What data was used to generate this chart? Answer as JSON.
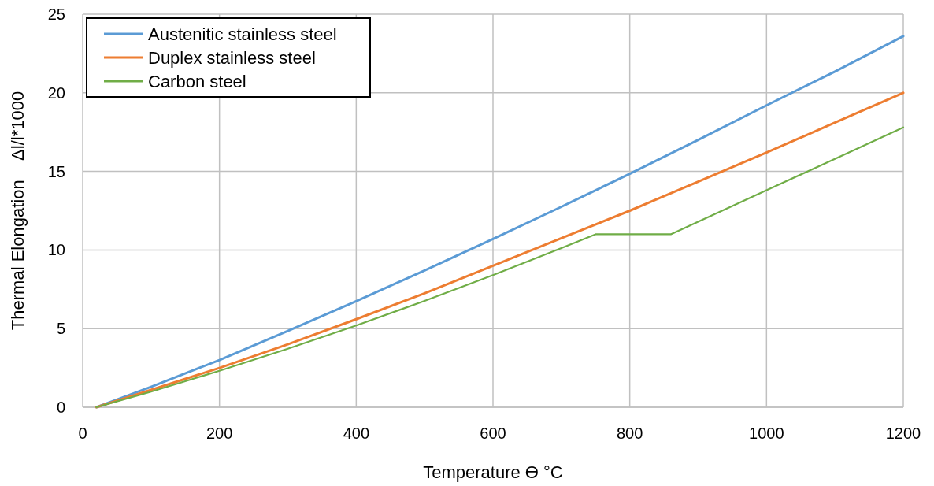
{
  "chart_data": {
    "type": "line",
    "xlabel": "Temperature ϴ °C",
    "ylabel": "Thermal Elongation    Δl/l*1000",
    "xlim": [
      0,
      1200
    ],
    "ylim": [
      0,
      25
    ],
    "xticks": [
      0,
      200,
      400,
      600,
      800,
      1000,
      1200
    ],
    "yticks": [
      0,
      5,
      10,
      15,
      20,
      25
    ],
    "grid": true,
    "legend": "top left",
    "line_style": "solid",
    "marker": "none",
    "series": [
      {
        "name": "Austenitic stainless steel",
        "color": "#5b9bd5",
        "x": [
          20,
          100,
          200,
          300,
          400,
          500,
          600,
          700,
          750,
          800,
          900,
          1000,
          1100,
          1200
        ],
        "values": [
          0,
          1.3,
          3.0,
          4.85,
          6.75,
          8.7,
          10.7,
          12.75,
          13.8,
          14.85,
          17.0,
          19.2,
          21.35,
          23.6
        ]
      },
      {
        "name": "Duplex stainless steel",
        "color": "#ed7d31",
        "x": [
          20,
          100,
          200,
          300,
          400,
          500,
          600,
          700,
          800,
          900,
          1000,
          1100,
          1200
        ],
        "values": [
          0,
          1.1,
          2.5,
          4.0,
          5.6,
          7.25,
          9.0,
          10.75,
          12.5,
          14.35,
          16.2,
          18.1,
          20.0
        ]
      },
      {
        "name": "Carbon steel",
        "color": "#70ad47",
        "x": [
          20,
          100,
          200,
          300,
          400,
          500,
          600,
          700,
          750,
          860,
          1000,
          1100,
          1200
        ],
        "values": [
          0,
          0.99,
          2.32,
          3.72,
          5.2,
          6.76,
          8.4,
          10.12,
          11.0,
          11.0,
          13.8,
          15.8,
          17.8
        ]
      }
    ]
  }
}
